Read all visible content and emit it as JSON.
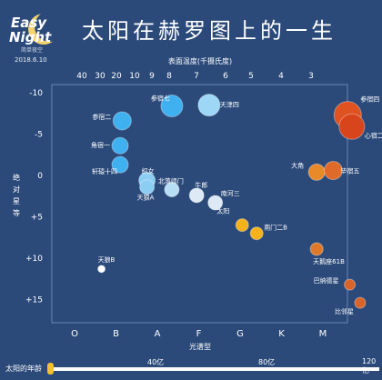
{
  "logo": {
    "line1": "Easy",
    "line2": "Night",
    "sub": "简单夜空"
  },
  "date": "2018.6.10",
  "title": "太阳在赫罗图上的一生",
  "timeline": {
    "label": "太阳的年龄",
    "ticks": [
      "40亿",
      "80亿",
      "120亿"
    ],
    "min": 0,
    "max": 12000000000,
    "current": 0
  },
  "chart_data": {
    "type": "scatter",
    "top_axis_label": "表面温度(千摄氏度)",
    "top_ticks": [
      "40",
      "30",
      "20",
      "10",
      "9",
      "8",
      "7",
      "6",
      "5",
      "4",
      "3"
    ],
    "x_axis_label": "光谱型",
    "x_ticks": [
      "O",
      "B",
      "A",
      "F",
      "G",
      "K",
      "M"
    ],
    "y_axis_label": "绝对星等",
    "y_ticks": [
      "-10",
      "-5",
      "0",
      "+5",
      "+10",
      "+15"
    ],
    "ylim": [
      -11,
      18
    ],
    "y_inverted": true,
    "points": [
      {
        "name": "参宿七",
        "spectral": 2.35,
        "mag": -8.4,
        "color": "#3fb0f0",
        "size": 12
      },
      {
        "name": "天津四",
        "spectral": 3.25,
        "mag": -8.5,
        "color": "#9ed7f5",
        "size": 12
      },
      {
        "name": "参宿二",
        "spectral": 1.15,
        "mag": -6.6,
        "color": "#3fb0f0",
        "size": 10
      },
      {
        "name": "角宿一",
        "spectral": 1.1,
        "mag": -3.6,
        "color": "#3fb0f0",
        "size": 9
      },
      {
        "name": "轩辕十四",
        "spectral": 1.1,
        "mag": -1.3,
        "color": "#3fb0f0",
        "size": 9
      },
      {
        "name": "织女",
        "spectral": 1.75,
        "mag": 0.6,
        "color": "#8ccdf3",
        "size": 9
      },
      {
        "name": "天狼A",
        "spectral": 1.75,
        "mag": 1.4,
        "color": "#8ccdf3",
        "size": 8
      },
      {
        "name": "北落师门",
        "spectral": 2.35,
        "mag": 1.7,
        "color": "#b7def5",
        "size": 8
      },
      {
        "name": "牛郎",
        "spectral": 2.95,
        "mag": 2.4,
        "color": "#dde9f5",
        "size": 8
      },
      {
        "name": "南河三",
        "spectral": 3.4,
        "mag": 3.3,
        "color": "#dde9f5",
        "size": 8
      },
      {
        "name": "太阳",
        "spectral": 4.05,
        "mag": 6.0,
        "color": "#f5b21b",
        "size": 7
      },
      {
        "name": "南门二B",
        "spectral": 4.4,
        "mag": 7.0,
        "color": "#f5b21b",
        "size": 7
      },
      {
        "name": "天鹅座61B",
        "spectral": 5.85,
        "mag": 8.9,
        "color": "#e07a2a",
        "size": 7
      },
      {
        "name": "巴纳德星",
        "spectral": 6.65,
        "mag": 13.2,
        "color": "#d9642a",
        "size": 6
      },
      {
        "name": "比邻星",
        "spectral": 6.9,
        "mag": 15.4,
        "color": "#d9642a",
        "size": 6
      },
      {
        "name": "天狼B",
        "spectral": 0.65,
        "mag": 11.3,
        "color": "#ffffff",
        "size": 4
      },
      {
        "name": "大角",
        "spectral": 5.85,
        "mag": -0.4,
        "color": "#e88a2a",
        "size": 9
      },
      {
        "name": "毕宿五",
        "spectral": 6.25,
        "mag": -0.6,
        "color": "#e06a2a",
        "size": 10
      },
      {
        "name": "参宿四",
        "spectral": 6.6,
        "mag": -7.3,
        "color": "#e0521f",
        "size": 15
      },
      {
        "name": "心宿二",
        "spectral": 6.7,
        "mag": -5.9,
        "color": "#d8451c",
        "size": 14
      }
    ]
  }
}
